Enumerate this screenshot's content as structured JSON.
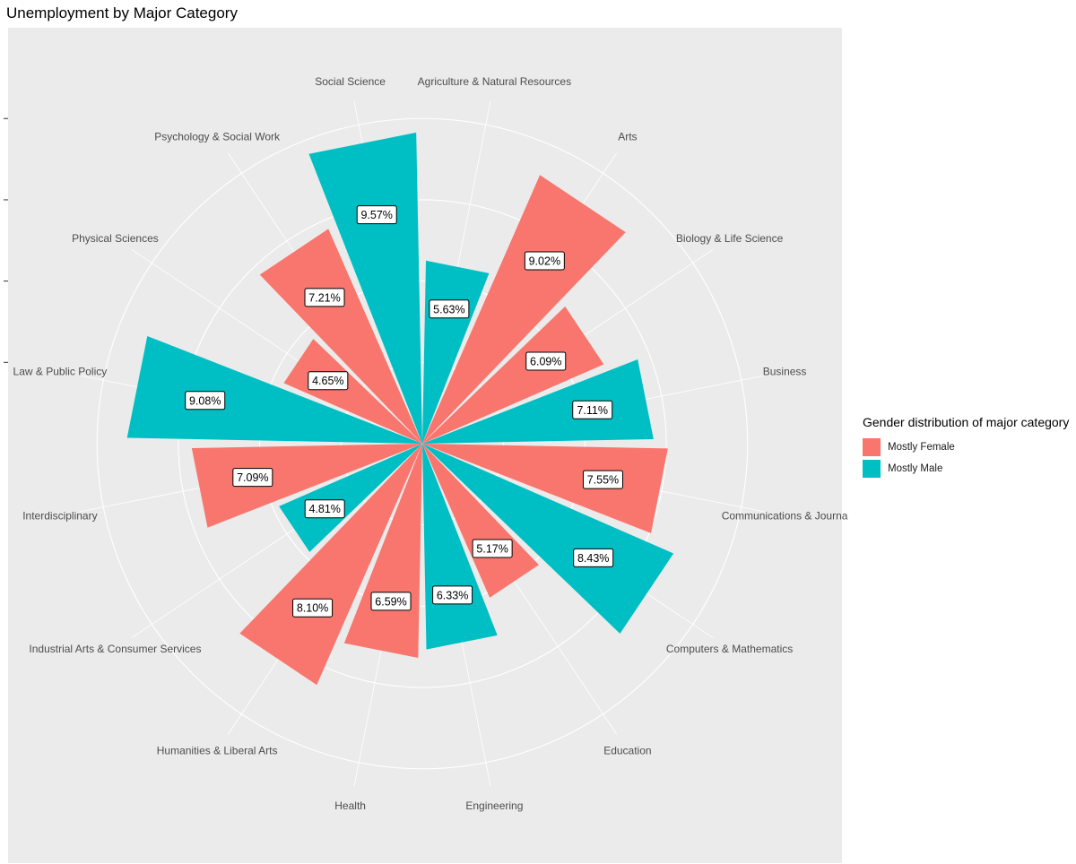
{
  "chart_data": {
    "type": "bar",
    "coordinate": "polar",
    "title": "Unemployment by Major Category",
    "legend": {
      "title": "Gender distribution of major category",
      "placement": "right",
      "entries": [
        {
          "name": "Mostly Female",
          "color": "#F8766D"
        },
        {
          "name": "Mostly Male",
          "color": "#00BFC4"
        }
      ]
    },
    "categories": [
      "Agriculture & Natural Resources",
      "Arts",
      "Biology & Life Science",
      "Business",
      "Communications & Journalism",
      "Computers & Mathematics",
      "Education",
      "Engineering",
      "Health",
      "Humanities & Liberal Arts",
      "Industrial Arts & Consumer Services",
      "Interdisciplinary",
      "Law & Public Policy",
      "Physical Sciences",
      "Psychology & Social Work",
      "Social Science"
    ],
    "axis_labels": [
      "Agriculture & Natural Resources",
      "Arts",
      "Biology & Life Science",
      "Business",
      "Communications & Journa",
      "Computers & Mathematics",
      "Education",
      "Engineering",
      "Health",
      "Humanities & Liberal Arts",
      "Industrial Arts & Consumer Services",
      "Interdisciplinary",
      "Law & Public Policy",
      "Physical Sciences",
      "Psychology & Social Work",
      "Social Science"
    ],
    "values": [
      5.63,
      9.02,
      6.09,
      7.11,
      7.55,
      8.43,
      5.17,
      6.33,
      6.59,
      8.1,
      4.81,
      7.09,
      9.08,
      4.65,
      7.21,
      9.57
    ],
    "data_labels": [
      "5.63%",
      "9.02%",
      "6.09%",
      "7.11%",
      "7.55%",
      "8.43%",
      "5.17%",
      "6.33%",
      "6.59%",
      "8.10%",
      "4.81%",
      "7.09%",
      "9.08%",
      "4.65%",
      "7.21%",
      "9.57%"
    ],
    "groups": [
      "Mostly Male",
      "Mostly Female",
      "Mostly Female",
      "Mostly Male",
      "Mostly Female",
      "Mostly Male",
      "Mostly Female",
      "Mostly Male",
      "Mostly Female",
      "Mostly Female",
      "Mostly Male",
      "Mostly Female",
      "Mostly Male",
      "Mostly Female",
      "Mostly Female",
      "Mostly Male"
    ],
    "group_colors": {
      "Mostly Female": "#F8766D",
      "Mostly Male": "#00BFC4"
    },
    "radial_max": 10.2,
    "radial_grid": [
      2.5,
      5,
      7.5,
      10
    ],
    "grid": true,
    "ylabel": "",
    "xlabel": ""
  }
}
